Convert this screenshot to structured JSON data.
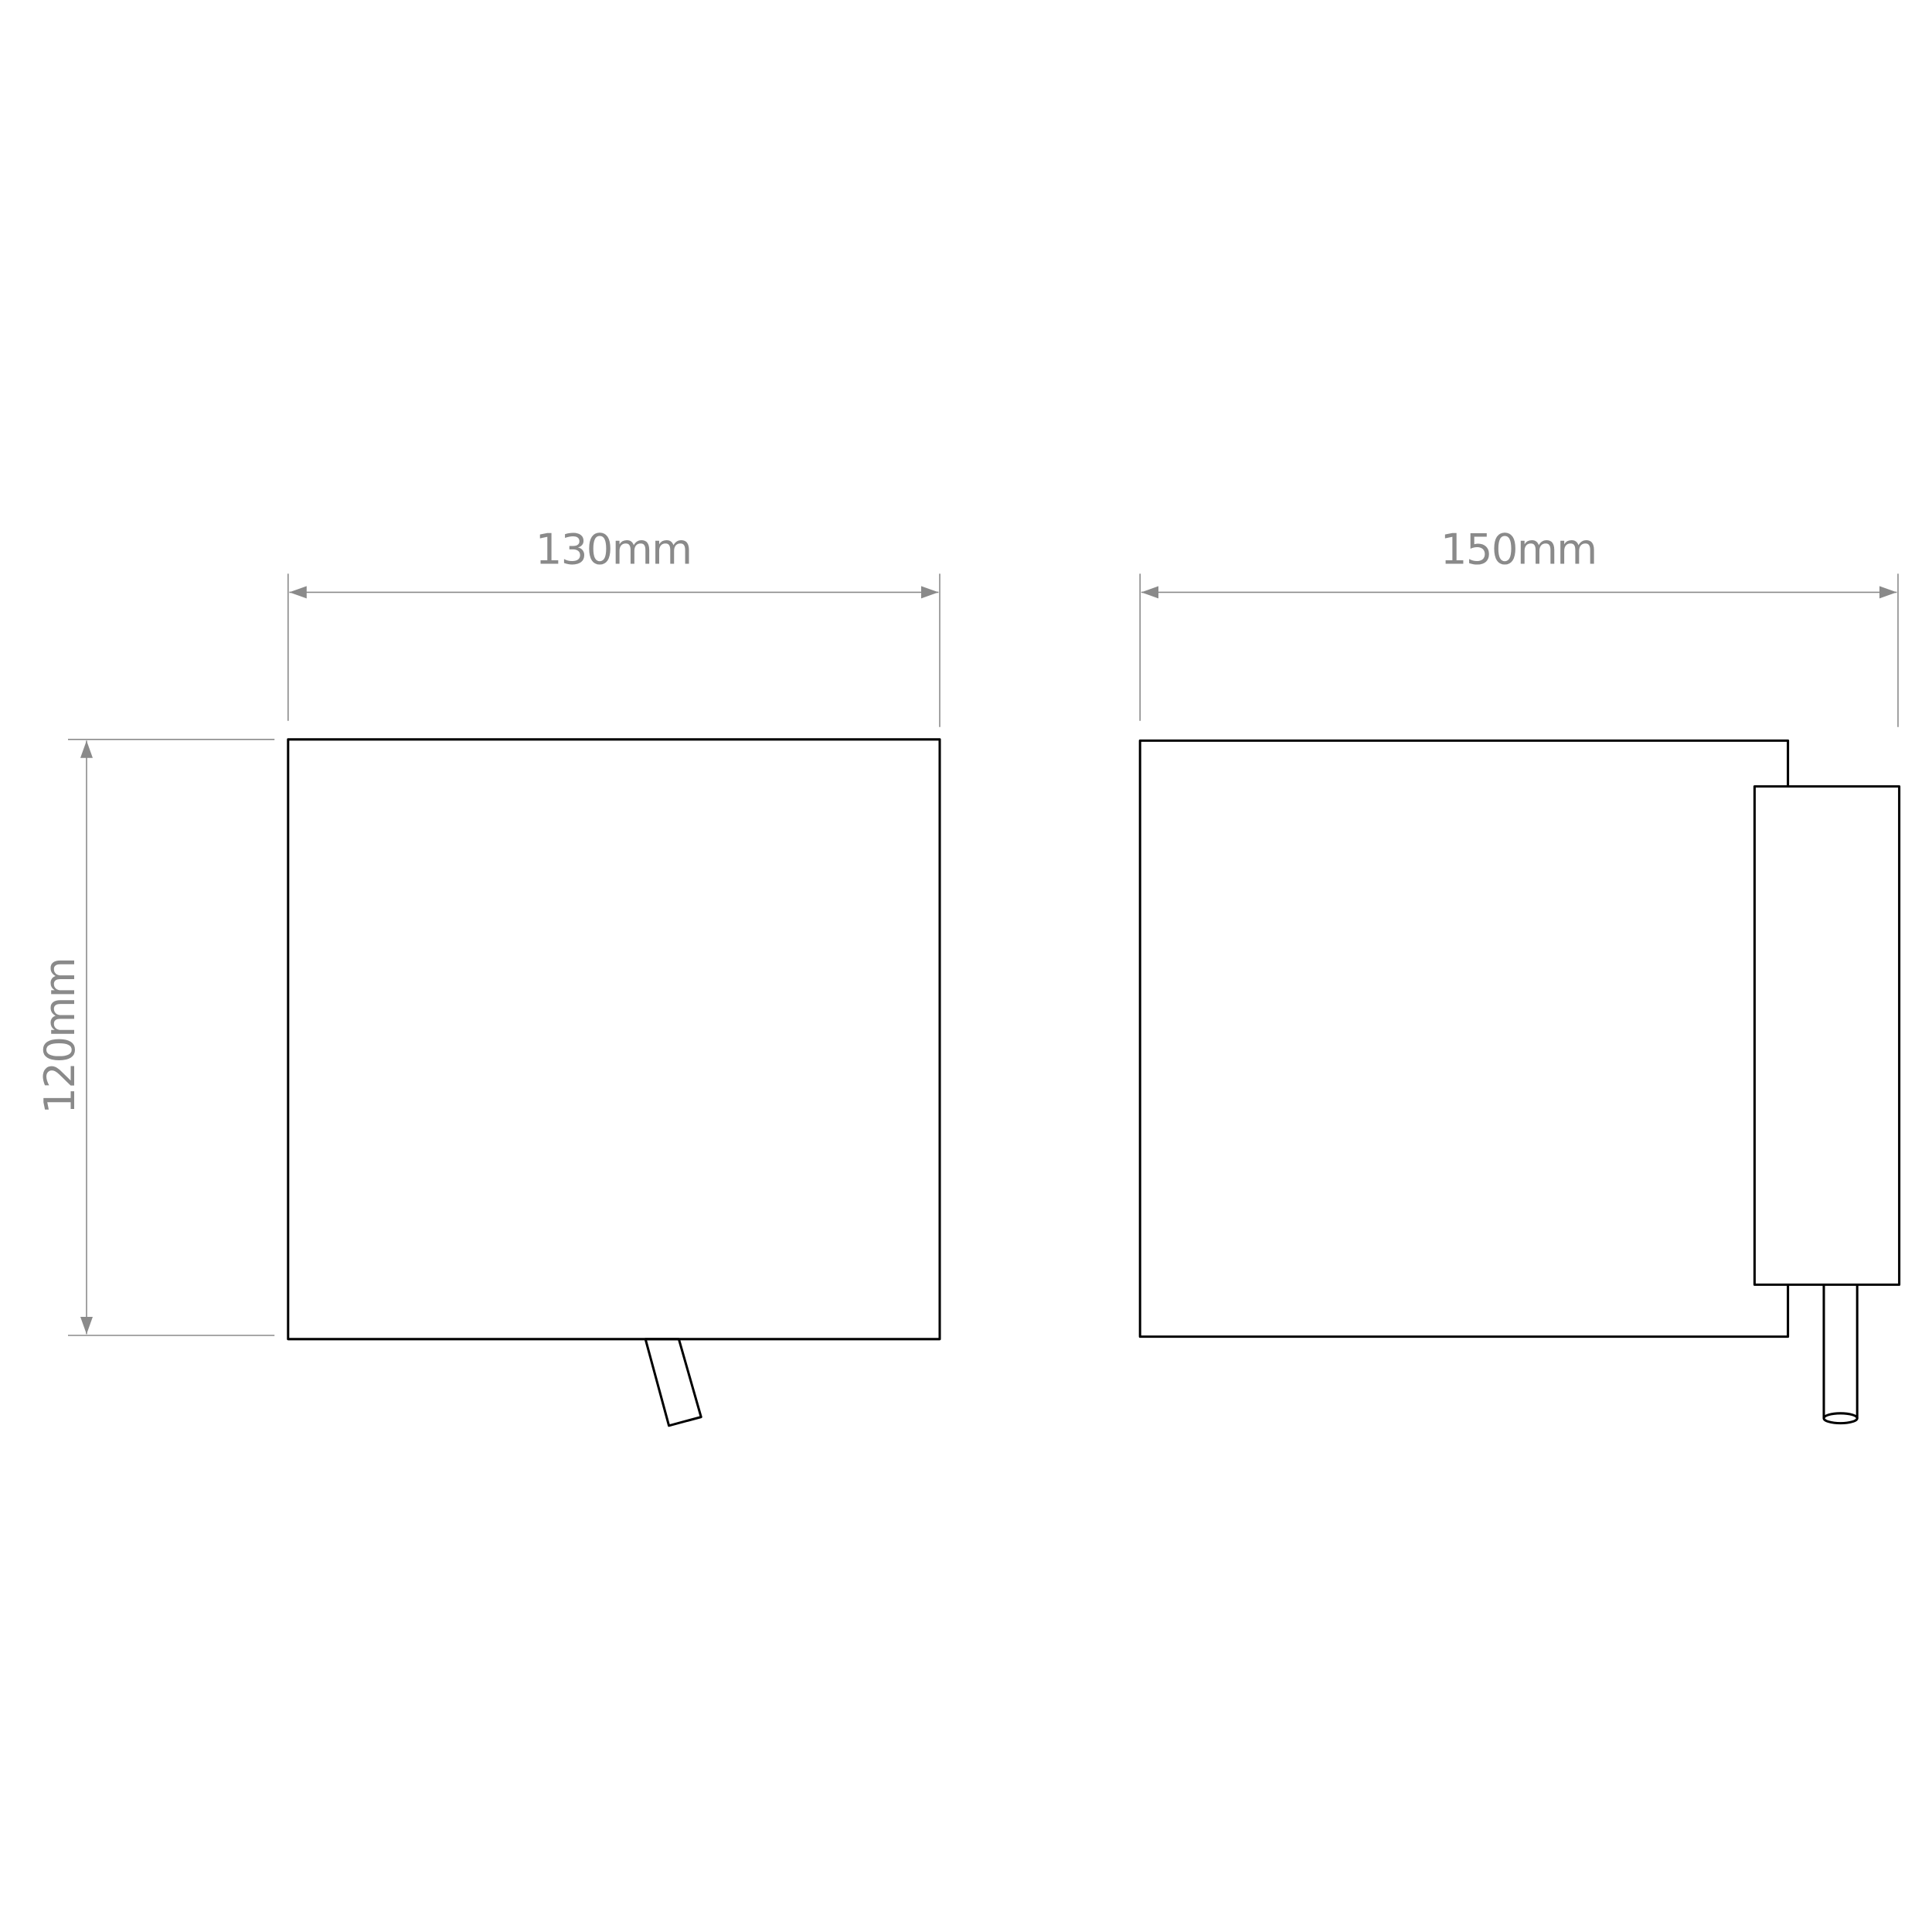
{
  "dimensions": {
    "front_width": "130mm",
    "front_height": "120mm",
    "side_depth": "150mm"
  },
  "colors": {
    "outline": "#000000",
    "dimension": "#8a8a8a",
    "background": "#ffffff"
  }
}
